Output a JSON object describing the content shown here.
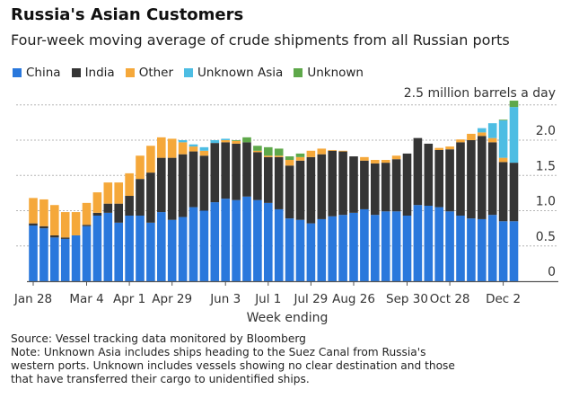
{
  "chart_data": {
    "type": "bar",
    "stacked": true,
    "title": "Russia's Asian Customers",
    "subtitle": "Four-week moving average of crude shipments from all Russian ports",
    "xlabel": "Week ending",
    "ylabel": "2.5 million barrels a day",
    "ylim": [
      0,
      2.5
    ],
    "yticks": [
      "0",
      "0.5",
      "1.0",
      "1.5",
      "2.0"
    ],
    "grid": true,
    "legend_placement": "top-left",
    "x_tick_labels": [
      {
        "bar": 1,
        "label": "Jan 28"
      },
      {
        "bar": 6,
        "label": "Mar 4"
      },
      {
        "bar": 10,
        "label": "Apr 1"
      },
      {
        "bar": 14,
        "label": "Apr 29"
      },
      {
        "bar": 19,
        "label": "Jun 3"
      },
      {
        "bar": 23,
        "label": "Jul 1"
      },
      {
        "bar": 27,
        "label": "Jul 29"
      },
      {
        "bar": 31,
        "label": "Aug 26"
      },
      {
        "bar": 36,
        "label": "Sep 30"
      },
      {
        "bar": 40,
        "label": "Oct 28"
      },
      {
        "bar": 45,
        "label": "Dec 2"
      }
    ],
    "series": [
      {
        "name": "China",
        "color": "#2a78dc",
        "values": [
          0.79,
          0.75,
          0.62,
          0.6,
          0.65,
          0.78,
          0.93,
          0.97,
          0.83,
          0.93,
          0.93,
          0.83,
          0.98,
          0.87,
          0.91,
          1.05,
          1.0,
          1.12,
          1.17,
          1.15,
          1.2,
          1.15,
          1.11,
          1.02,
          0.89,
          0.87,
          0.82,
          0.88,
          0.92,
          0.94,
          0.97,
          1.02,
          0.94,
          0.99,
          0.99,
          0.93,
          1.08,
          1.07,
          1.05,
          0.99,
          0.93,
          0.89,
          0.88,
          0.94,
          0.85,
          0.85
        ]
      },
      {
        "name": "India",
        "color": "#353535",
        "values": [
          0.03,
          0.03,
          0.03,
          0.02,
          0,
          0.02,
          0.04,
          0.13,
          0.27,
          0.28,
          0.52,
          0.71,
          0.77,
          0.88,
          0.89,
          0.79,
          0.78,
          0.84,
          0.8,
          0.8,
          0.77,
          0.68,
          0.65,
          0.74,
          0.75,
          0.84,
          0.94,
          0.92,
          0.93,
          0.9,
          0.8,
          0.69,
          0.73,
          0.69,
          0.74,
          0.88,
          0.95,
          0.88,
          0.81,
          0.88,
          1.04,
          1.11,
          1.18,
          1.03,
          0.84,
          0.83
        ]
      },
      {
        "name": "Other",
        "color": "#f5a83a",
        "values": [
          0.36,
          0.38,
          0.43,
          0.36,
          0.33,
          0.31,
          0.29,
          0.3,
          0.3,
          0.32,
          0.33,
          0.38,
          0.29,
          0.27,
          0.17,
          0.07,
          0.07,
          0,
          0.03,
          0.04,
          0,
          0.02,
          0.02,
          0.02,
          0.08,
          0.05,
          0.09,
          0.08,
          0.01,
          0.01,
          0,
          0.05,
          0.05,
          0.04,
          0.05,
          0,
          0,
          0,
          0.03,
          0.04,
          0.04,
          0.09,
          0.05,
          0.06,
          0.06,
          0
        ]
      },
      {
        "name": "Unknown Asia",
        "color": "#4dbde3",
        "values": [
          0,
          0,
          0,
          0,
          0,
          0,
          0,
          0,
          0,
          0,
          0,
          0,
          0,
          0,
          0.03,
          0.03,
          0.05,
          0.04,
          0.02,
          0,
          0,
          0,
          0,
          0,
          0,
          0,
          0,
          0,
          0,
          0,
          0,
          0,
          0,
          0,
          0,
          0,
          0,
          0,
          0,
          0,
          0,
          0,
          0.06,
          0.21,
          0.53,
          0.79
        ]
      },
      {
        "name": "Unknown",
        "color": "#5ea84a",
        "values": [
          0,
          0,
          0,
          0,
          0,
          0,
          0,
          0,
          0,
          0,
          0,
          0,
          0,
          0,
          0,
          0,
          0,
          0,
          0,
          0.01,
          0.07,
          0.07,
          0.12,
          0.1,
          0.05,
          0.05,
          0,
          0,
          0,
          0,
          0,
          0,
          0,
          0,
          0,
          0,
          0,
          0,
          0,
          0,
          0,
          0,
          0,
          0,
          0.01,
          0.09
        ]
      }
    ]
  },
  "notes": {
    "source": "Source: Vessel tracking data monitored by Bloomberg",
    "note1": "Note: Unknown Asia includes ships heading to the Suez Canal from Russia's",
    "note2": "western ports. Unknown includes vessels showing no clear destination and those",
    "note3": "that have transferred their cargo to unidentified ships."
  }
}
